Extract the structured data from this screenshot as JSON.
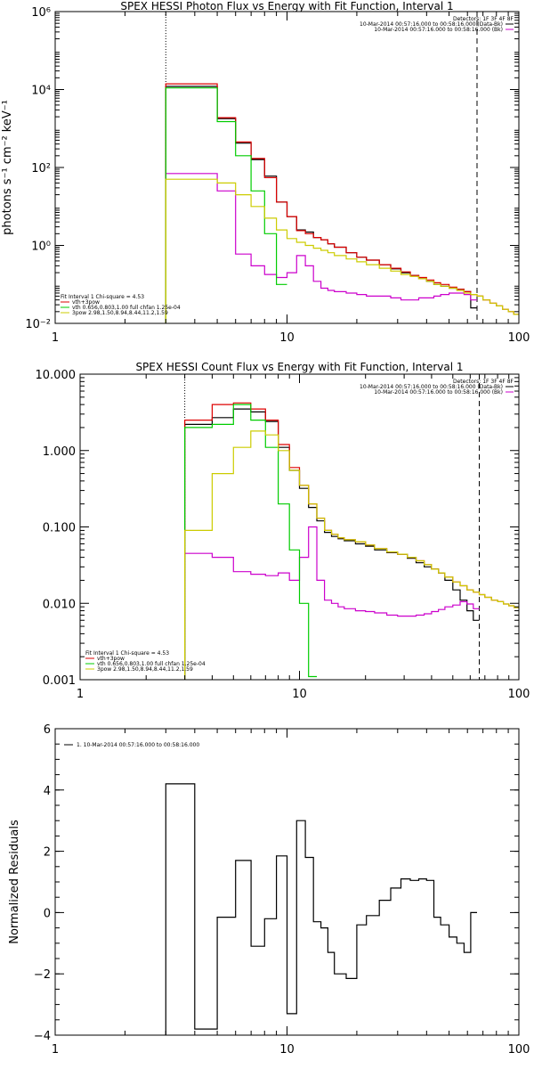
{
  "chart_data": [
    {
      "type": "line",
      "title": "SPEX HESSI Photon Flux vs Energy with Fit Function, Interval 1",
      "ylabel": "photons s⁻¹ cm⁻² keV⁻¹",
      "xscale": "log",
      "yscale": "log",
      "xlim": [
        1,
        100
      ],
      "ylim": [
        0.01,
        1000000
      ],
      "x_ticks": [
        1,
        10,
        100
      ],
      "x_tick_labels": [
        "1",
        "10",
        "100"
      ],
      "y_ticks": [
        0.01,
        1,
        100,
        10000,
        1000000
      ],
      "y_tick_labels": [
        "10⁻²",
        "10⁰",
        "10²",
        "10⁴",
        "10⁶"
      ],
      "vlines": [
        {
          "x": 3,
          "style": "dotted"
        },
        {
          "x": 66,
          "style": "dashed"
        }
      ],
      "legend_top_right": [
        "Detectors: 1F 3F 4F 8F",
        "10-Mar-2014 00:57:16.000 to 00:58:16.000 (Data-Bk)",
        "10-Mar-2014 00:57:16.000 to 00:58:16.000 (Bk)"
      ],
      "legend_bottom_left": [
        "Fit Interval 1    Chi-square = 4.53",
        "vth+3pow",
        "vth 0.656,0.803,1.00  full chfan 1.25e-04",
        "3pow 2.98,1.50,8.94,8.44,11.2,1.59"
      ],
      "series": [
        {
          "name": "10-Mar-2014 00:57:16.000 to 00:58:16.000 (Data-Bk)",
          "color": "#000000",
          "x": [
            3,
            4,
            5,
            6,
            7,
            8,
            9,
            10,
            11,
            12,
            13,
            14,
            15,
            16,
            18,
            20,
            22,
            25,
            28,
            31,
            34,
            37,
            40,
            43,
            46,
            50,
            54,
            58,
            62,
            66
          ],
          "y": [
            12000,
            12000,
            1800,
            420,
            160,
            60,
            13,
            5.5,
            2.5,
            2.2,
            1.6,
            1.4,
            1.1,
            0.9,
            0.65,
            0.5,
            0.42,
            0.32,
            0.25,
            0.2,
            0.17,
            0.14,
            0.12,
            0.1,
            0.09,
            0.08,
            0.075,
            0.065,
            0.025,
            0.01
          ]
        },
        {
          "name": "10-Mar-2014 00:57:16.000 to 00:58:16.000 (Bk)",
          "color": "#cc00cc",
          "x": [
            3,
            4,
            5,
            6,
            7,
            8,
            9,
            10,
            11,
            12,
            13,
            14,
            15,
            16,
            18,
            20,
            22,
            25,
            28,
            31,
            34,
            37,
            40,
            43,
            46,
            50,
            54,
            58,
            62,
            66
          ],
          "y": [
            70,
            70,
            25,
            0.6,
            0.3,
            0.18,
            0.15,
            0.2,
            0.55,
            0.3,
            0.12,
            0.08,
            0.07,
            0.065,
            0.06,
            0.055,
            0.05,
            0.05,
            0.045,
            0.04,
            0.04,
            0.045,
            0.045,
            0.05,
            0.055,
            0.06,
            0.06,
            0.055,
            0.04,
            0.01
          ]
        },
        {
          "name": "vth+3pow",
          "color": "#dd0000",
          "x": [
            3,
            4,
            5,
            6,
            7,
            8,
            9,
            10,
            11,
            12,
            13,
            14,
            15,
            16,
            18,
            20,
            22,
            25,
            28,
            31,
            34,
            37,
            40,
            43,
            46,
            50,
            54,
            58,
            62,
            66,
            70,
            75,
            80,
            85,
            90,
            95,
            100
          ],
          "y": [
            14000,
            14000,
            1900,
            450,
            170,
            55,
            13,
            5.5,
            2.4,
            2.0,
            1.6,
            1.4,
            1.1,
            0.9,
            0.65,
            0.5,
            0.42,
            0.32,
            0.26,
            0.21,
            0.17,
            0.15,
            0.13,
            0.11,
            0.1,
            0.085,
            0.075,
            0.065,
            0.055,
            0.05,
            0.04,
            0.033,
            0.028,
            0.023,
            0.02,
            0.017,
            0.015
          ]
        },
        {
          "name": "vth 0.656,0.803,1.00  full chfan 1.25e-04",
          "color": "#00cc00",
          "x": [
            3,
            4,
            5,
            6,
            7,
            8,
            9,
            10
          ],
          "y": [
            11000,
            11000,
            1500,
            200,
            25,
            2,
            0.1,
            0.005
          ]
        },
        {
          "name": "3pow 2.98,1.50,8.94,8.44,11.2,1.59",
          "color": "#cccc00",
          "x": [
            3,
            4,
            5,
            6,
            7,
            8,
            9,
            10,
            11,
            12,
            13,
            14,
            15,
            16,
            18,
            20,
            22,
            25,
            28,
            31,
            34,
            37,
            40,
            43,
            46,
            50,
            54,
            58,
            62,
            66,
            70,
            75,
            80,
            85,
            90,
            95,
            100
          ],
          "y": [
            50,
            50,
            40,
            20,
            10,
            5,
            2.5,
            1.5,
            1.2,
            1.0,
            0.85,
            0.75,
            0.65,
            0.55,
            0.45,
            0.38,
            0.32,
            0.26,
            0.22,
            0.18,
            0.16,
            0.14,
            0.12,
            0.1,
            0.09,
            0.08,
            0.07,
            0.06,
            0.055,
            0.05,
            0.04,
            0.033,
            0.028,
            0.023,
            0.02,
            0.017,
            0.015
          ]
        }
      ]
    },
    {
      "type": "line",
      "title": "SPEX HESSI Count Flux vs Energy with Fit Function, Interval 1",
      "ylabel": "",
      "xscale": "log",
      "yscale": "log",
      "xlim": [
        1,
        100
      ],
      "ylim": [
        0.001,
        10
      ],
      "x_ticks": [
        1,
        10,
        100
      ],
      "x_tick_labels": [
        "1",
        "10",
        "100"
      ],
      "y_ticks": [
        0.001,
        0.01,
        0.1,
        1,
        10
      ],
      "y_tick_labels": [
        "0.001",
        "0.010",
        "0.100",
        "1.000",
        "10.000"
      ],
      "vlines": [
        {
          "x": 3,
          "style": "dotted"
        },
        {
          "x": 66,
          "style": "dashed"
        }
      ],
      "legend_top_right": [
        "Detectors: 1F 3F 4F 8F",
        "10-Mar-2014 00:57:16.000 to 00:58:16.000 (Data-Bk)",
        "10-Mar-2014 00:57:16.000 to 00:58:16.000 (Bk)"
      ],
      "legend_bottom_left": [
        "Fit Interval 1    Chi-square = 4.53",
        "vth+3pow",
        "vth 0.656,0.803,1.00  full chfan 1.25e-04",
        "3pow 2.98,1.50,8.94,8.44,11.2,1.59"
      ],
      "series": [
        {
          "name": "10-Mar-2014 00:57:16.000 to 00:58:16.000 (Data-Bk)",
          "color": "#000000",
          "x": [
            3,
            4,
            5,
            6,
            7,
            8,
            9,
            10,
            11,
            12,
            13,
            14,
            15,
            16,
            18,
            20,
            22,
            25,
            28,
            31,
            34,
            37,
            40,
            43,
            46,
            50,
            54,
            58,
            62,
            66
          ],
          "y": [
            2.2,
            2.7,
            3.5,
            3.2,
            2.4,
            1.1,
            0.55,
            0.32,
            0.18,
            0.12,
            0.085,
            0.075,
            0.07,
            0.066,
            0.06,
            0.056,
            0.05,
            0.046,
            0.044,
            0.039,
            0.034,
            0.03,
            0.028,
            0.025,
            0.02,
            0.015,
            0.011,
            0.008,
            0.006,
            0.0005
          ]
        },
        {
          "name": "10-Mar-2014 00:57:16.000 to 00:58:16.000 (Bk)",
          "color": "#cc00cc",
          "x": [
            3,
            4,
            5,
            6,
            7,
            8,
            9,
            10,
            11,
            12,
            13,
            14,
            15,
            16,
            18,
            20,
            22,
            25,
            28,
            31,
            34,
            37,
            40,
            43,
            46,
            50,
            54,
            58,
            62,
            66
          ],
          "y": [
            0.045,
            0.04,
            0.026,
            0.024,
            0.023,
            0.025,
            0.02,
            0.04,
            0.1,
            0.02,
            0.011,
            0.01,
            0.009,
            0.0085,
            0.008,
            0.0078,
            0.0075,
            0.007,
            0.0068,
            0.0068,
            0.007,
            0.0073,
            0.0078,
            0.0083,
            0.009,
            0.0095,
            0.0105,
            0.0098,
            0.0085,
            0.0005
          ]
        },
        {
          "name": "vth+3pow",
          "color": "#dd0000",
          "x": [
            3,
            4,
            5,
            6,
            7,
            8,
            9,
            10,
            11,
            12,
            13,
            14,
            15,
            16,
            18,
            20,
            22,
            25,
            28,
            31,
            34,
            37,
            40,
            43,
            46,
            50,
            54,
            58,
            62,
            66,
            70,
            75,
            80,
            85,
            90,
            95,
            100
          ],
          "y": [
            2.5,
            4.0,
            4.2,
            3.5,
            2.5,
            1.2,
            0.6,
            0.35,
            0.2,
            0.13,
            0.09,
            0.08,
            0.072,
            0.068,
            0.064,
            0.058,
            0.052,
            0.047,
            0.044,
            0.04,
            0.036,
            0.032,
            0.028,
            0.025,
            0.022,
            0.019,
            0.017,
            0.015,
            0.014,
            0.013,
            0.012,
            0.011,
            0.0105,
            0.0098,
            0.0093,
            0.0088,
            0.0083
          ]
        },
        {
          "name": "vth 0.656,0.803,1.00  full chfan 1.25e-04",
          "color": "#00cc00",
          "x": [
            3,
            4,
            5,
            6,
            7,
            8,
            9,
            10,
            11,
            12
          ],
          "y": [
            2.0,
            2.2,
            4.0,
            2.5,
            1.1,
            0.2,
            0.05,
            0.01,
            0.0011,
            0.0005
          ]
        },
        {
          "name": "3pow 2.98,1.50,8.94,8.44,11.2,1.59",
          "color": "#cccc00",
          "x": [
            3,
            4,
            5,
            6,
            7,
            8,
            9,
            10,
            11,
            12,
            13,
            14,
            15,
            16,
            18,
            20,
            22,
            25,
            28,
            31,
            34,
            37,
            40,
            43,
            46,
            50,
            54,
            58,
            62,
            66,
            70,
            75,
            80,
            85,
            90,
            95,
            100
          ],
          "y": [
            0.09,
            0.5,
            1.1,
            1.8,
            1.6,
            1.0,
            0.55,
            0.35,
            0.2,
            0.13,
            0.09,
            0.08,
            0.072,
            0.068,
            0.064,
            0.058,
            0.052,
            0.047,
            0.044,
            0.04,
            0.036,
            0.032,
            0.028,
            0.025,
            0.022,
            0.019,
            0.017,
            0.015,
            0.014,
            0.013,
            0.012,
            0.011,
            0.0105,
            0.0098,
            0.0093,
            0.0088,
            0.0083
          ]
        }
      ]
    },
    {
      "type": "line",
      "title": "",
      "ylabel": "Normalized Residuals",
      "xscale": "log",
      "yscale": "linear",
      "xlim": [
        1,
        100
      ],
      "ylim": [
        -4,
        6
      ],
      "x_ticks": [
        1,
        10,
        100
      ],
      "x_tick_labels": [
        "1",
        "10",
        "100"
      ],
      "y_ticks": [
        -4,
        -2,
        0,
        2,
        4,
        6
      ],
      "y_tick_labels": [
        "−4",
        "−2",
        "0",
        "2",
        "4",
        "6"
      ],
      "legend": [
        "1. 10-Mar-2014 00:57:16.000 to 00:58:16.000"
      ],
      "series": [
        {
          "name": "1. 10-Mar-2014 00:57:16.000 to 00:58:16.000",
          "color": "#000000",
          "x": [
            3,
            4,
            5,
            6,
            7,
            8,
            9,
            10,
            11,
            12,
            13,
            14,
            15,
            16,
            18,
            20,
            22,
            25,
            28,
            31,
            34,
            37,
            40,
            43,
            46,
            50,
            54,
            58,
            62,
            66
          ],
          "y": [
            4.2,
            -3.8,
            -0.15,
            1.7,
            -1.1,
            -0.2,
            1.85,
            -3.3,
            3.0,
            1.8,
            -0.3,
            -0.5,
            -1.3,
            -2.0,
            -2.15,
            -0.4,
            -0.1,
            0.4,
            0.8,
            1.1,
            1.05,
            1.1,
            1.05,
            -0.15,
            -0.4,
            -0.8,
            -1.0,
            -1.3,
            0,
            0
          ]
        }
      ]
    }
  ]
}
